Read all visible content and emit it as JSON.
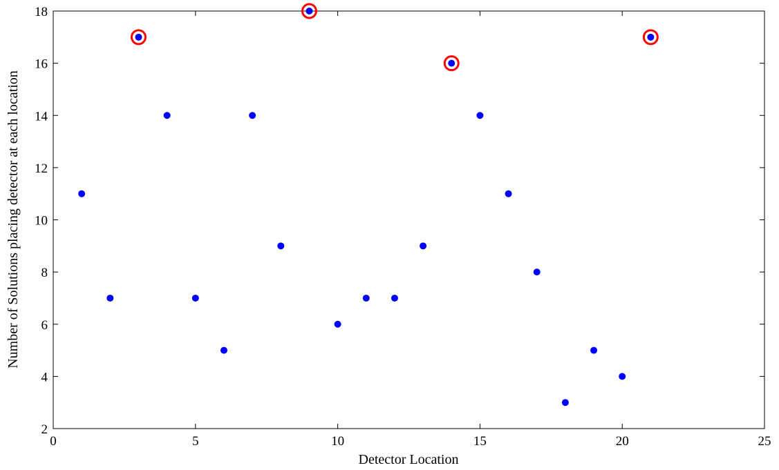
{
  "chart_data": {
    "type": "scatter",
    "xlabel": "Detector Location",
    "ylabel": "Number of Solutions placing detector at each location",
    "xlim": [
      0,
      25
    ],
    "ylim": [
      2,
      18
    ],
    "xticks": [
      0,
      5,
      10,
      15,
      20,
      25
    ],
    "yticks": [
      2,
      4,
      6,
      8,
      10,
      12,
      14,
      16,
      18
    ],
    "grid": false,
    "series": [
      {
        "marker": "filled-circle",
        "color": "#0000ff",
        "x": [
          1,
          2,
          3,
          4,
          5,
          6,
          7,
          8,
          9,
          10,
          11,
          12,
          13,
          14,
          15,
          16,
          17,
          18,
          19,
          20,
          21
        ],
        "y": [
          11,
          7,
          17,
          14,
          7,
          5,
          14,
          9,
          18,
          6,
          7,
          7,
          9,
          16,
          14,
          11,
          8,
          3,
          5,
          4,
          17
        ]
      }
    ],
    "highlighted": {
      "marker": "open-circle",
      "color": "#ff0000",
      "x": [
        3,
        9,
        14,
        21
      ],
      "y": [
        17,
        18,
        16,
        17
      ]
    }
  }
}
